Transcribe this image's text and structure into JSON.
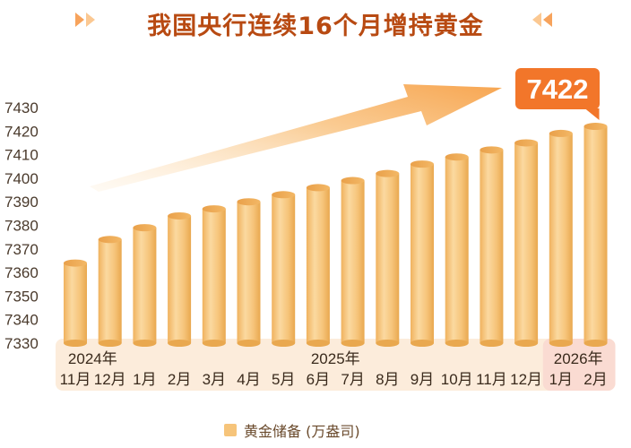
{
  "header": {
    "title": "我国央行连续16个月增持黄金"
  },
  "colors": {
    "title": "#b84a12",
    "bar": "#f6c47a",
    "bar_dark": "#e9a84f",
    "callout": "#f2762a",
    "band": "#fbe6cf",
    "band_highlight": "#f9d7d0"
  },
  "chart_data": {
    "type": "bar",
    "categories": [
      "11月",
      "12月",
      "1月",
      "2月",
      "3月",
      "4月",
      "5月",
      "6月",
      "7月",
      "8月",
      "9月",
      "10月",
      "11月",
      "12月",
      "1月",
      "2月"
    ],
    "year_labels": [
      {
        "label": "2024年",
        "from": 0,
        "to": 1
      },
      {
        "label": "2025年",
        "from": 2,
        "to": 13
      },
      {
        "label": "2026年",
        "from": 14,
        "to": 15
      }
    ],
    "series": [
      {
        "name": "黄金储备 (万盎司)",
        "values": [
          7364,
          7374,
          7379,
          7384,
          7387,
          7390,
          7393,
          7396,
          7399,
          7402,
          7406,
          7409,
          7412,
          7415,
          7419,
          7422
        ]
      }
    ],
    "yticks": [
      7330,
      7340,
      7350,
      7360,
      7370,
      7380,
      7390,
      7400,
      7410,
      7420,
      7430
    ],
    "ylim": [
      7330,
      7430
    ],
    "callout": "7422",
    "legend_position": "bottom"
  }
}
